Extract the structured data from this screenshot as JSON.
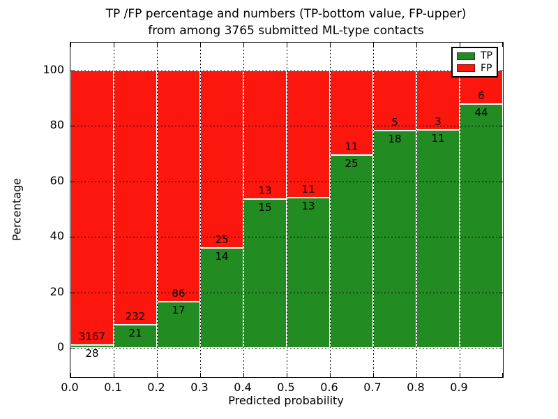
{
  "chart_data": {
    "type": "bar",
    "stacked": true,
    "normalized_to_percent": true,
    "title_line1": "TP /FP percentage and numbers (TP-bottom value, FP-upper)",
    "title_line2": "from among 3765 submitted ML-type contacts",
    "xlabel": "Predicted probability",
    "ylabel": "Percentage",
    "x_tick_labels": [
      "0.0",
      "0.1",
      "0.2",
      "0.3",
      "0.4",
      "0.5",
      "0.6",
      "0.7",
      "0.8",
      "0.9"
    ],
    "y_tick_values": [
      0,
      20,
      40,
      60,
      80,
      100
    ],
    "xlim": [
      0.0,
      1.0
    ],
    "ylim": [
      -10.6,
      110.1
    ],
    "grid": true,
    "total_contacts": 3765,
    "legend": {
      "position": "upper right",
      "items": [
        {
          "label": "TP",
          "color": "#228b22"
        },
        {
          "label": "FP",
          "color": "#fb170e"
        }
      ]
    },
    "bins": [
      {
        "range": [
          0.0,
          0.1
        ],
        "tp": 28,
        "fp": 3167
      },
      {
        "range": [
          0.1,
          0.2
        ],
        "tp": 21,
        "fp": 232
      },
      {
        "range": [
          0.2,
          0.3
        ],
        "tp": 17,
        "fp": 86
      },
      {
        "range": [
          0.3,
          0.4
        ],
        "tp": 14,
        "fp": 25
      },
      {
        "range": [
          0.4,
          0.5
        ],
        "tp": 15,
        "fp": 13
      },
      {
        "range": [
          0.5,
          0.6
        ],
        "tp": 13,
        "fp": 11
      },
      {
        "range": [
          0.6,
          0.7
        ],
        "tp": 25,
        "fp": 11
      },
      {
        "range": [
          0.7,
          0.8
        ],
        "tp": 18,
        "fp": 5
      },
      {
        "range": [
          0.8,
          0.9
        ],
        "tp": 11,
        "fp": 3
      },
      {
        "range": [
          0.9,
          1.0
        ],
        "tp": 44,
        "fp": 6
      }
    ]
  }
}
